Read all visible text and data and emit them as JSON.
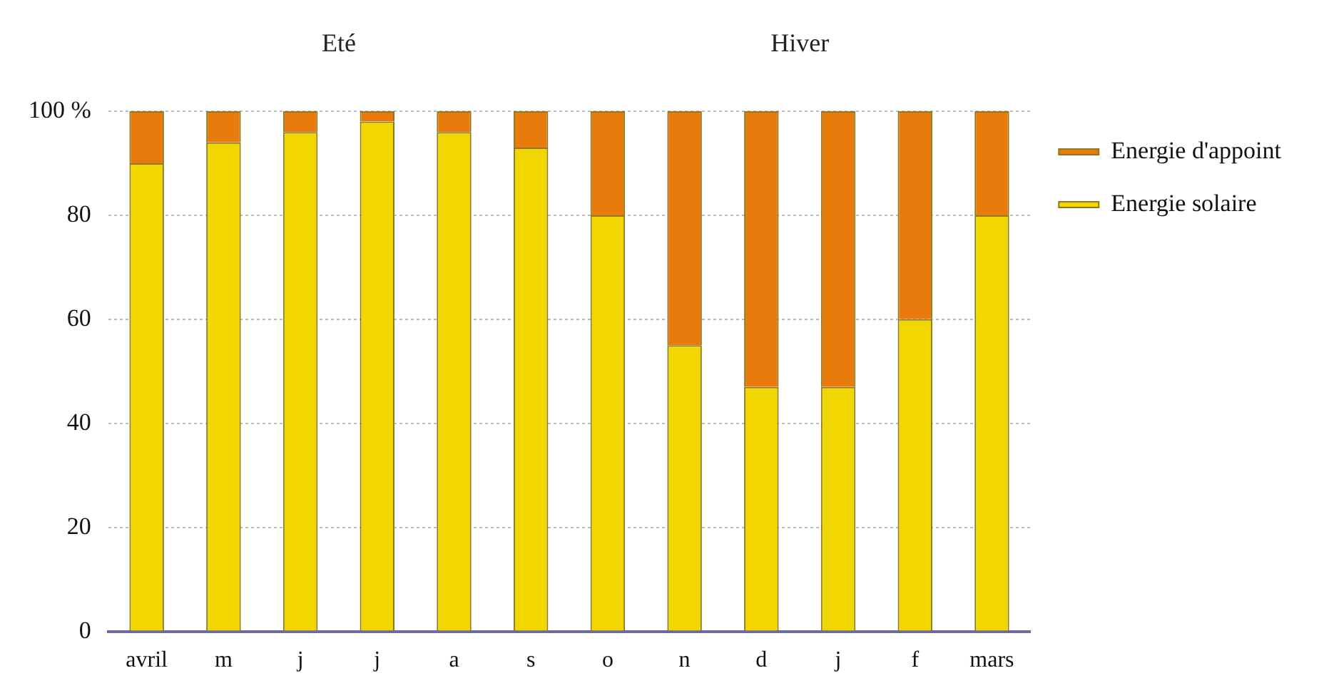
{
  "chart_data": {
    "type": "bar",
    "stacked": true,
    "categories": [
      "avril",
      "m",
      "j",
      "j",
      "a",
      "s",
      "o",
      "n",
      "d",
      "j",
      "f",
      "mars"
    ],
    "series": [
      {
        "name": "Energie solaire",
        "color": "#f2d600",
        "values": [
          90,
          94,
          96,
          98,
          96,
          93,
          80,
          55,
          47,
          47,
          60,
          80
        ]
      },
      {
        "name": "Energie d'appoint",
        "color": "#e97b0c",
        "values": [
          10,
          6,
          4,
          2,
          4,
          7,
          20,
          45,
          53,
          53,
          40,
          20
        ]
      }
    ],
    "ylim": [
      0,
      100
    ],
    "yticks": [
      0,
      20,
      40,
      60,
      80,
      {
        "value": 100,
        "label": "100 %"
      }
    ],
    "grid": "y",
    "legend": "top right",
    "annotations": [
      "Eté",
      "Hiver"
    ]
  }
}
